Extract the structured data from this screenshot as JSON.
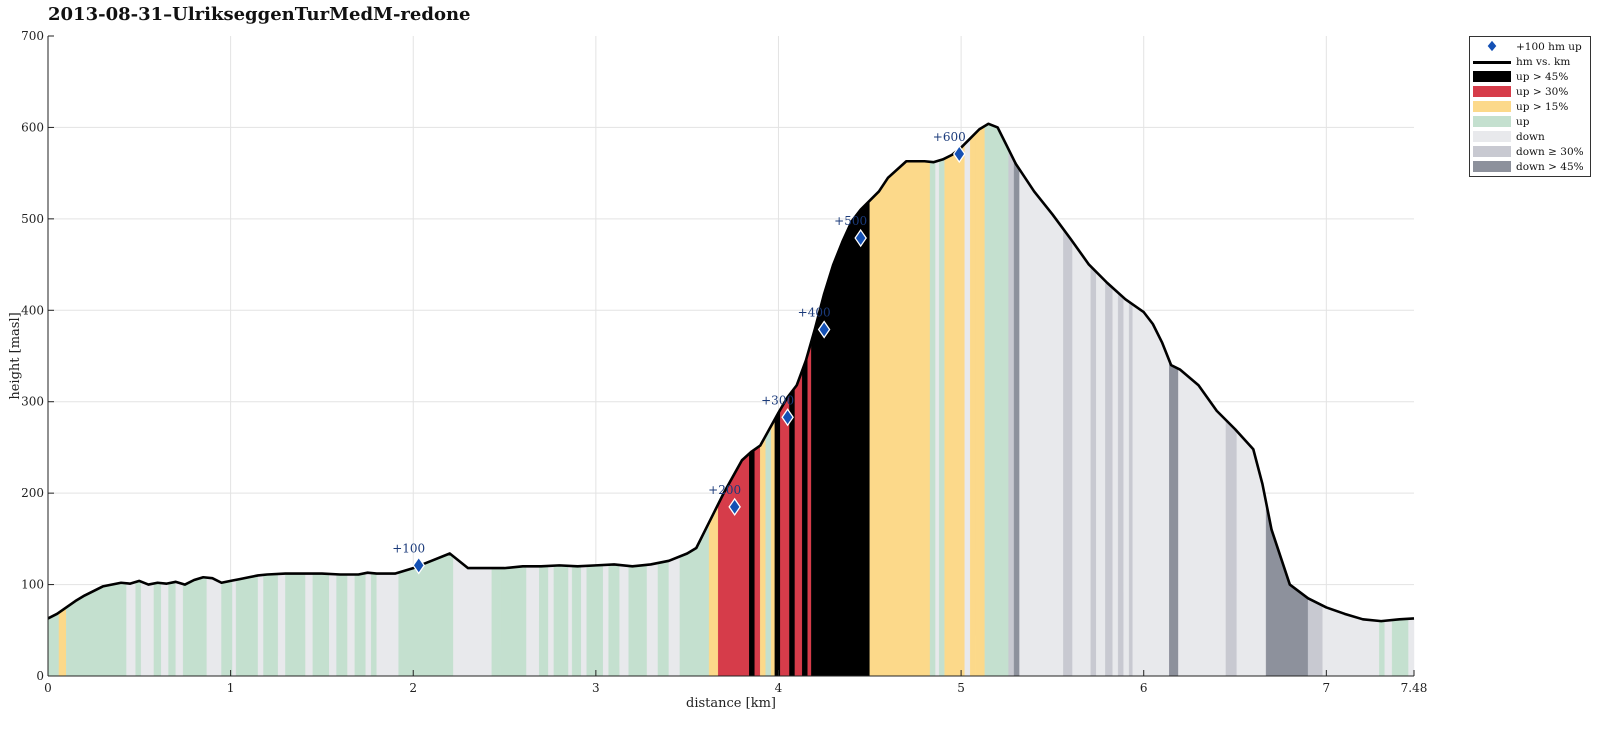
{
  "title": "2013-08-31–UlrikseggenTurMedM-redone",
  "chart_data": {
    "type": "area",
    "title": "2013-08-31–UlrikseggenTurMedM-redone",
    "xlabel": "distance [km]",
    "ylabel": "height [masl]",
    "xlim": [
      0,
      7.48
    ],
    "ylim": [
      0,
      700
    ],
    "xticks": [
      0,
      1,
      2,
      3,
      4,
      5,
      6,
      7,
      7.48
    ],
    "xtick_labels": [
      "0",
      "1",
      "2",
      "3",
      "4",
      "5",
      "6",
      "7",
      "7.48"
    ],
    "yticks": [
      0,
      100,
      200,
      300,
      400,
      500,
      600,
      700
    ],
    "ytick_labels": [
      "0",
      "100",
      "200",
      "300",
      "400",
      "500",
      "600",
      "700"
    ],
    "grid": true,
    "legend_position": "outside top-right",
    "profile": {
      "name": "hm vs. km",
      "x": [
        0,
        0.05,
        0.1,
        0.15,
        0.2,
        0.3,
        0.4,
        0.45,
        0.5,
        0.55,
        0.6,
        0.65,
        0.7,
        0.75,
        0.8,
        0.85,
        0.9,
        0.95,
        1.0,
        1.05,
        1.1,
        1.15,
        1.2,
        1.3,
        1.4,
        1.5,
        1.6,
        1.7,
        1.75,
        1.8,
        1.9,
        2.0,
        2.05,
        2.1,
        2.2,
        2.3,
        2.4,
        2.5,
        2.6,
        2.7,
        2.8,
        2.9,
        3.0,
        3.1,
        3.2,
        3.3,
        3.4,
        3.5,
        3.55,
        3.6,
        3.65,
        3.7,
        3.75,
        3.8,
        3.85,
        3.9,
        3.95,
        4.0,
        4.05,
        4.1,
        4.15,
        4.2,
        4.25,
        4.3,
        4.35,
        4.4,
        4.45,
        4.5,
        4.55,
        4.6,
        4.7,
        4.8,
        4.85,
        4.9,
        4.95,
        5.0,
        5.05,
        5.1,
        5.15,
        5.2,
        5.25,
        5.3,
        5.35,
        5.4,
        5.5,
        5.6,
        5.7,
        5.8,
        5.9,
        6.0,
        6.05,
        6.1,
        6.15,
        6.2,
        6.3,
        6.4,
        6.5,
        6.6,
        6.65,
        6.7,
        6.8,
        6.9,
        7.0,
        7.1,
        7.2,
        7.3,
        7.4,
        7.48
      ],
      "y": [
        63,
        68,
        75,
        82,
        88,
        98,
        102,
        101,
        104,
        100,
        102,
        101,
        103,
        100,
        105,
        108,
        107,
        102,
        104,
        106,
        108,
        110,
        111,
        112,
        112,
        112,
        111,
        111,
        113,
        112,
        112,
        118,
        122,
        126,
        134,
        118,
        118,
        118,
        120,
        120,
        121,
        120,
        121,
        122,
        120,
        122,
        126,
        134,
        140,
        160,
        180,
        200,
        218,
        236,
        245,
        252,
        270,
        288,
        305,
        318,
        345,
        380,
        418,
        450,
        475,
        497,
        510,
        520,
        530,
        545,
        563,
        563,
        562,
        565,
        570,
        578,
        588,
        598,
        604,
        600,
        580,
        560,
        545,
        530,
        505,
        478,
        450,
        430,
        412,
        398,
        385,
        365,
        340,
        335,
        318,
        290,
        270,
        248,
        210,
        160,
        100,
        85,
        75,
        68,
        62,
        60,
        62,
        63
      ]
    },
    "markers": {
      "name": "+100 hm up",
      "x": [
        2.03,
        3.76,
        4.05,
        4.25,
        4.45,
        4.99
      ],
      "y": [
        121,
        185,
        283,
        379,
        479,
        571
      ],
      "labels": [
        "+100",
        "+200",
        "+300",
        "+400",
        "+500",
        "+600"
      ]
    },
    "segment_categories": [
      "up > 45%",
      "up > 30%",
      "up > 15%",
      "up",
      "down",
      "down ≥ 30%",
      "down > 45%"
    ],
    "segment_colors": {
      "up > 45%": "#000000",
      "up > 30%": "#d63c4a",
      "up > 15%": "#fcd98a",
      "up": "#c4e0cf",
      "down": "#e8e9ec",
      "down ≥ 30%": "#c8c9d1",
      "down > 45%": "#8d919c"
    },
    "segments": [
      {
        "from": 0.0,
        "to": 0.06,
        "category": "up"
      },
      {
        "from": 0.06,
        "to": 0.1,
        "category": "up > 15%"
      },
      {
        "from": 0.1,
        "to": 0.43,
        "category": "up"
      },
      {
        "from": 0.43,
        "to": 0.48,
        "category": "down"
      },
      {
        "from": 0.48,
        "to": 0.51,
        "category": "up"
      },
      {
        "from": 0.51,
        "to": 0.58,
        "category": "down"
      },
      {
        "from": 0.58,
        "to": 0.62,
        "category": "up"
      },
      {
        "from": 0.62,
        "to": 0.66,
        "category": "down"
      },
      {
        "from": 0.66,
        "to": 0.7,
        "category": "up"
      },
      {
        "from": 0.7,
        "to": 0.74,
        "category": "down"
      },
      {
        "from": 0.74,
        "to": 0.87,
        "category": "up"
      },
      {
        "from": 0.87,
        "to": 0.95,
        "category": "down"
      },
      {
        "from": 0.95,
        "to": 1.01,
        "category": "up"
      },
      {
        "from": 1.01,
        "to": 1.03,
        "category": "down"
      },
      {
        "from": 1.03,
        "to": 1.15,
        "category": "up"
      },
      {
        "from": 1.15,
        "to": 1.18,
        "category": "down"
      },
      {
        "from": 1.18,
        "to": 1.26,
        "category": "up"
      },
      {
        "from": 1.26,
        "to": 1.3,
        "category": "down"
      },
      {
        "from": 1.3,
        "to": 1.41,
        "category": "up"
      },
      {
        "from": 1.41,
        "to": 1.45,
        "category": "down"
      },
      {
        "from": 1.45,
        "to": 1.54,
        "category": "up"
      },
      {
        "from": 1.54,
        "to": 1.58,
        "category": "down"
      },
      {
        "from": 1.58,
        "to": 1.64,
        "category": "up"
      },
      {
        "from": 1.64,
        "to": 1.68,
        "category": "down"
      },
      {
        "from": 1.68,
        "to": 1.74,
        "category": "up"
      },
      {
        "from": 1.74,
        "to": 1.77,
        "category": "down"
      },
      {
        "from": 1.77,
        "to": 1.8,
        "category": "up"
      },
      {
        "from": 1.8,
        "to": 1.92,
        "category": "down"
      },
      {
        "from": 1.92,
        "to": 2.22,
        "category": "up"
      },
      {
        "from": 2.22,
        "to": 2.43,
        "category": "down"
      },
      {
        "from": 2.43,
        "to": 2.48,
        "category": "up"
      },
      {
        "from": 2.48,
        "to": 2.62,
        "category": "up"
      },
      {
        "from": 2.62,
        "to": 2.69,
        "category": "down"
      },
      {
        "from": 2.69,
        "to": 2.74,
        "category": "up"
      },
      {
        "from": 2.74,
        "to": 2.77,
        "category": "down"
      },
      {
        "from": 2.77,
        "to": 2.85,
        "category": "up"
      },
      {
        "from": 2.85,
        "to": 2.87,
        "category": "down"
      },
      {
        "from": 2.87,
        "to": 2.92,
        "category": "up"
      },
      {
        "from": 2.92,
        "to": 2.95,
        "category": "down"
      },
      {
        "from": 2.95,
        "to": 3.04,
        "category": "up"
      },
      {
        "from": 3.04,
        "to": 3.07,
        "category": "down"
      },
      {
        "from": 3.07,
        "to": 3.13,
        "category": "up"
      },
      {
        "from": 3.13,
        "to": 3.18,
        "category": "down"
      },
      {
        "from": 3.18,
        "to": 3.28,
        "category": "up"
      },
      {
        "from": 3.28,
        "to": 3.34,
        "category": "down"
      },
      {
        "from": 3.34,
        "to": 3.4,
        "category": "up"
      },
      {
        "from": 3.4,
        "to": 3.46,
        "category": "down"
      },
      {
        "from": 3.46,
        "to": 3.62,
        "category": "up"
      },
      {
        "from": 3.62,
        "to": 3.67,
        "category": "up > 15%"
      },
      {
        "from": 3.67,
        "to": 3.84,
        "category": "up > 30%"
      },
      {
        "from": 3.84,
        "to": 3.87,
        "category": "up > 45%"
      },
      {
        "from": 3.87,
        "to": 3.9,
        "category": "up > 30%"
      },
      {
        "from": 3.9,
        "to": 3.93,
        "category": "up > 15%"
      },
      {
        "from": 3.93,
        "to": 3.96,
        "category": "up"
      },
      {
        "from": 3.96,
        "to": 3.98,
        "category": "up > 15%"
      },
      {
        "from": 3.98,
        "to": 4.01,
        "category": "up > 45%"
      },
      {
        "from": 4.01,
        "to": 4.06,
        "category": "up > 30%"
      },
      {
        "from": 4.06,
        "to": 4.09,
        "category": "up > 45%"
      },
      {
        "from": 4.09,
        "to": 4.13,
        "category": "up > 30%"
      },
      {
        "from": 4.13,
        "to": 4.16,
        "category": "up > 45%"
      },
      {
        "from": 4.16,
        "to": 4.18,
        "category": "up > 30%"
      },
      {
        "from": 4.18,
        "to": 4.5,
        "category": "up > 45%"
      },
      {
        "from": 4.5,
        "to": 4.83,
        "category": "up > 15%"
      },
      {
        "from": 4.83,
        "to": 4.86,
        "category": "up"
      },
      {
        "from": 4.86,
        "to": 4.88,
        "category": "down"
      },
      {
        "from": 4.88,
        "to": 4.91,
        "category": "up"
      },
      {
        "from": 4.91,
        "to": 4.95,
        "category": "up > 15%"
      },
      {
        "from": 4.95,
        "to": 5.02,
        "category": "up > 15%"
      },
      {
        "from": 5.02,
        "to": 5.05,
        "category": "down"
      },
      {
        "from": 5.05,
        "to": 5.08,
        "category": "up > 15%"
      },
      {
        "from": 5.08,
        "to": 5.13,
        "category": "up > 15%"
      },
      {
        "from": 5.13,
        "to": 5.26,
        "category": "up"
      },
      {
        "from": 5.26,
        "to": 5.29,
        "category": "down ≥ 30%"
      },
      {
        "from": 5.29,
        "to": 5.32,
        "category": "down > 45%"
      },
      {
        "from": 5.32,
        "to": 5.56,
        "category": "down"
      },
      {
        "from": 5.56,
        "to": 5.61,
        "category": "down ≥ 30%"
      },
      {
        "from": 5.61,
        "to": 5.71,
        "category": "down"
      },
      {
        "from": 5.71,
        "to": 5.74,
        "category": "down ≥ 30%"
      },
      {
        "from": 5.74,
        "to": 5.79,
        "category": "down"
      },
      {
        "from": 5.79,
        "to": 5.83,
        "category": "down ≥ 30%"
      },
      {
        "from": 5.83,
        "to": 5.86,
        "category": "down"
      },
      {
        "from": 5.86,
        "to": 5.89,
        "category": "down ≥ 30%"
      },
      {
        "from": 5.89,
        "to": 5.92,
        "category": "down"
      },
      {
        "from": 5.92,
        "to": 5.94,
        "category": "down ≥ 30%"
      },
      {
        "from": 5.94,
        "to": 6.14,
        "category": "down"
      },
      {
        "from": 6.14,
        "to": 6.19,
        "category": "down > 45%"
      },
      {
        "from": 6.19,
        "to": 6.45,
        "category": "down"
      },
      {
        "from": 6.45,
        "to": 6.51,
        "category": "down ≥ 30%"
      },
      {
        "from": 6.51,
        "to": 6.67,
        "category": "down"
      },
      {
        "from": 6.67,
        "to": 6.9,
        "category": "down > 45%"
      },
      {
        "from": 6.9,
        "to": 6.98,
        "category": "down ≥ 30%"
      },
      {
        "from": 6.98,
        "to": 7.29,
        "category": "down"
      },
      {
        "from": 7.29,
        "to": 7.32,
        "category": "up"
      },
      {
        "from": 7.32,
        "to": 7.36,
        "category": "down"
      },
      {
        "from": 7.36,
        "to": 7.45,
        "category": "up"
      },
      {
        "from": 7.45,
        "to": 7.48,
        "category": "down"
      }
    ]
  },
  "legend": {
    "items": [
      {
        "label": "+100 hm up",
        "symbol": "diamond",
        "color": "#1450b4"
      },
      {
        "label": "hm vs. km",
        "symbol": "line",
        "color": "#000000"
      },
      {
        "label": "up > 45%",
        "symbol": "patch",
        "color": "#000000"
      },
      {
        "label": "up > 30%",
        "symbol": "patch",
        "color": "#d63c4a"
      },
      {
        "label": "up > 15%",
        "symbol": "patch",
        "color": "#fcd98a"
      },
      {
        "label": "up",
        "symbol": "patch",
        "color": "#c4e0cf"
      },
      {
        "label": "down",
        "symbol": "patch",
        "color": "#e8e9ec"
      },
      {
        "label": "down ≥ 30%",
        "symbol": "patch",
        "color": "#c8c9d1"
      },
      {
        "label": "down > 45%",
        "symbol": "patch",
        "color": "#8d919c"
      }
    ]
  }
}
